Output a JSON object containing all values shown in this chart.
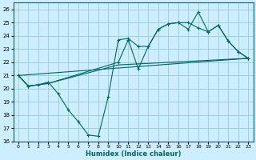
{
  "xlabel": "Humidex (Indice chaleur)",
  "background_color": "#cceeff",
  "grid_color": "#99cccc",
  "line_color": "#006666",
  "xlim": [
    -0.5,
    23.5
  ],
  "ylim": [
    16,
    26.5
  ],
  "xticks": [
    0,
    1,
    2,
    3,
    4,
    5,
    6,
    7,
    8,
    9,
    10,
    11,
    12,
    13,
    14,
    15,
    16,
    17,
    18,
    19,
    20,
    21,
    22,
    23
  ],
  "yticks": [
    16,
    17,
    18,
    19,
    20,
    21,
    22,
    23,
    24,
    25,
    26
  ],
  "line1_x": [
    0,
    1,
    2,
    3,
    4,
    5,
    6,
    7,
    8,
    9,
    10,
    11,
    12,
    13,
    14,
    15,
    16,
    17,
    18,
    19,
    20,
    21,
    22,
    23
  ],
  "line1_y": [
    21.0,
    20.2,
    20.3,
    20.5,
    19.6,
    18.4,
    17.5,
    16.5,
    16.4,
    19.4,
    23.7,
    23.8,
    23.2,
    23.2,
    24.5,
    24.9,
    25.0,
    25.0,
    24.6,
    24.3,
    24.8,
    23.6,
    22.8,
    22.3
  ],
  "line2_x": [
    0,
    1,
    3,
    10,
    11,
    12,
    13,
    14,
    15,
    16,
    17,
    18,
    19,
    20,
    21,
    22,
    23
  ],
  "line2_y": [
    21.0,
    20.2,
    20.4,
    22.0,
    23.7,
    21.5,
    23.2,
    24.5,
    24.9,
    25.0,
    24.5,
    25.8,
    24.3,
    24.8,
    23.6,
    22.8,
    22.3
  ],
  "line3_x": [
    0,
    23
  ],
  "line3_y": [
    21.0,
    22.3
  ],
  "line4_x": [
    0,
    1,
    3,
    10,
    23
  ],
  "line4_y": [
    21.0,
    20.2,
    20.4,
    21.8,
    22.3
  ]
}
